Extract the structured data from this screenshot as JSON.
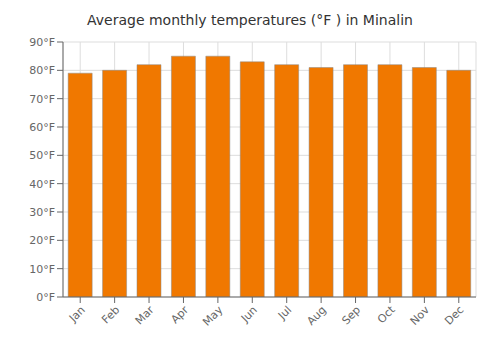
{
  "chart_data": {
    "type": "bar",
    "title": "Average monthly temperatures (°F ) in Minalin",
    "categories": [
      "Jan",
      "Feb",
      "Mar",
      "Apr",
      "May",
      "Jun",
      "Jul",
      "Aug",
      "Sep",
      "Oct",
      "Nov",
      "Dec"
    ],
    "values": [
      79,
      80,
      82,
      85,
      85,
      83,
      82,
      81,
      82,
      82,
      81,
      80
    ],
    "color": "#F07800",
    "ylim": [
      0,
      90
    ],
    "yticks": [
      {
        "value": 0,
        "label": "0°F"
      },
      {
        "value": 10,
        "label": "10°F"
      },
      {
        "value": 20,
        "label": "20°F"
      },
      {
        "value": 30,
        "label": "30°F"
      },
      {
        "value": 40,
        "label": "40°F"
      },
      {
        "value": 50,
        "label": "50°F"
      },
      {
        "value": 60,
        "label": "60°F"
      },
      {
        "value": 70,
        "label": "70°F"
      },
      {
        "value": 80,
        "label": "80°F"
      },
      {
        "value": 90,
        "label": "90°F"
      }
    ],
    "grid": true
  }
}
